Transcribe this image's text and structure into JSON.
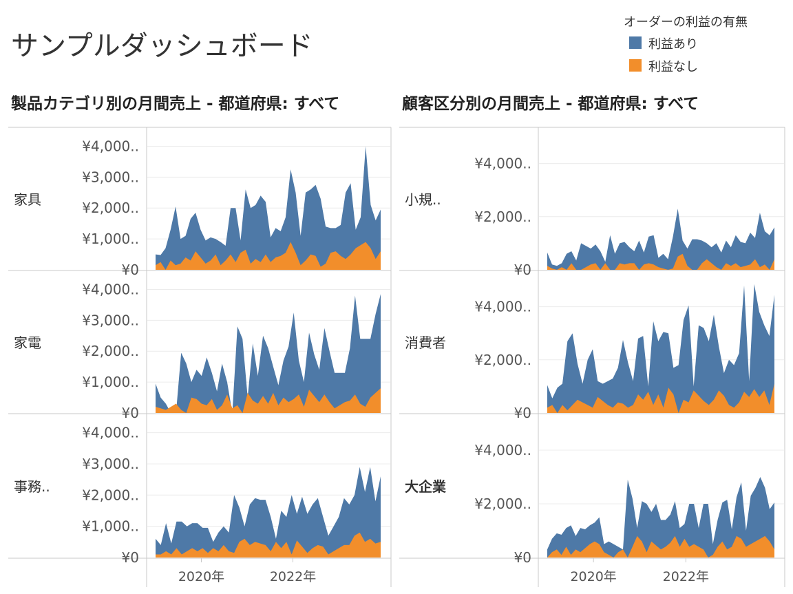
{
  "dashboard": {
    "title": "サンプルダッシュボード",
    "legend": {
      "title": "オーダーの利益の有無",
      "items": [
        {
          "label": "利益あり",
          "color": "#4e79a7"
        },
        {
          "label": "利益なし",
          "color": "#f28e2b"
        }
      ]
    },
    "x_axis_ticks": [
      "2020年",
      "2022年"
    ],
    "colors": {
      "profit": "#4e79a7",
      "loss": "#f28e2b",
      "grid": "#ececec",
      "divider": "#c8c8c8"
    }
  },
  "chart_data": [
    {
      "type": "area",
      "title": "製品カテゴリ別の月間売上 - 都道府県: すべて",
      "stacked": false,
      "x_range": [
        "2019-01",
        "2023-12"
      ],
      "panels": [
        {
          "label": "家具",
          "ylim": [
            0,
            4300
          ],
          "y_ticks": [
            {
              "v": 0,
              "label": "¥0"
            },
            {
              "v": 1000,
              "label": "¥1,000.."
            },
            {
              "v": 2000,
              "label": "¥2,000.."
            },
            {
              "v": 3000,
              "label": "¥3,000.."
            },
            {
              "v": 4000,
              "label": "¥4,000.."
            }
          ],
          "series": [
            {
              "name": "利益あり",
              "values": [
                500,
                480,
                700,
                1300,
                2050,
                1000,
                1100,
                1650,
                1850,
                1300,
                950,
                1050,
                1000,
                900,
                780,
                2000,
                2000,
                950,
                2600,
                2000,
                2100,
                2400,
                2200,
                1050,
                1350,
                1250,
                1700,
                3250,
                2500,
                1100,
                2500,
                2600,
                2750,
                2300,
                1400,
                1350,
                1350,
                1450,
                2500,
                2800,
                1300,
                1700,
                4000,
                2100,
                1600,
                1950
              ]
            },
            {
              "name": "利益なし",
              "values": [
                150,
                250,
                0,
                300,
                150,
                200,
                400,
                300,
                600,
                400,
                200,
                300,
                500,
                150,
                300,
                500,
                250,
                550,
                650,
                200,
                350,
                250,
                500,
                250,
                400,
                450,
                550,
                900,
                550,
                150,
                300,
                500,
                450,
                100,
                200,
                550,
                600,
                450,
                350,
                500,
                700,
                800,
                900,
                700,
                350,
                600
              ]
            }
          ]
        },
        {
          "label": "家電",
          "ylim": [
            0,
            4300
          ],
          "y_ticks": [
            {
              "v": 0,
              "label": "¥0"
            },
            {
              "v": 1000,
              "label": "¥1,000.."
            },
            {
              "v": 2000,
              "label": "¥2,000.."
            },
            {
              "v": 3000,
              "label": "¥3,000.."
            },
            {
              "v": 4000,
              "label": "¥4,000.."
            }
          ],
          "series": [
            {
              "name": "利益あり",
              "values": [
                950,
                500,
                300,
                1,
                1,
                1950,
                1600,
                1000,
                1400,
                1200,
                1800,
                1300,
                700,
                1600,
                1000,
                1,
                2800,
                2400,
                500,
                2250,
                1200,
                2500,
                2100,
                1500,
                900,
                1700,
                2150,
                3250,
                1700,
                1000,
                2600,
                1900,
                1400,
                2750,
                2000,
                1300,
                1300,
                1300,
                2100,
                3800,
                2400,
                2400,
                2400,
                3200,
                3850
              ]
            },
            {
              "name": "利益なし",
              "values": [
                200,
                150,
                100,
                200,
                300,
                100,
                0,
                500,
                450,
                300,
                250,
                450,
                100,
                250,
                600,
                150,
                250,
                0,
                650,
                400,
                300,
                550,
                300,
                650,
                250,
                500,
                350,
                450,
                600,
                200,
                750,
                550,
                350,
                600,
                350,
                150,
                250,
                350,
                400,
                600,
                300,
                200,
                500,
                650,
                800
              ]
            }
          ]
        },
        {
          "label": "事務..",
          "ylim": [
            0,
            4300
          ],
          "y_ticks": [
            {
              "v": 0,
              "label": "¥0"
            },
            {
              "v": 1000,
              "label": "¥1,000.."
            },
            {
              "v": 2000,
              "label": "¥2,000.."
            },
            {
              "v": 3000,
              "label": "¥3,000.."
            },
            {
              "v": 4000,
              "label": "¥4,000.."
            }
          ],
          "series": [
            {
              "name": "利益あり",
              "values": [
                600,
                400,
                1100,
                450,
                1150,
                1150,
                1000,
                1100,
                1100,
                950,
                950,
                500,
                800,
                1000,
                800,
                2000,
                1600,
                1000,
                1700,
                1900,
                1850,
                1850,
                1300,
                600,
                1500,
                1300,
                2000,
                1400,
                1950,
                1400,
                1700,
                1900,
                1300,
                700,
                1000,
                1300,
                1900,
                1700,
                2000,
                2900,
                2100,
                2900,
                1800,
                2600
              ]
            },
            {
              "name": "利益なし",
              "values": [
                100,
                100,
                200,
                100,
                300,
                100,
                200,
                300,
                200,
                300,
                150,
                300,
                200,
                400,
                200,
                150,
                500,
                600,
                400,
                500,
                450,
                400,
                200,
                500,
                300,
                500,
                100,
                550,
                350,
                150,
                300,
                400,
                350,
                100,
                200,
                300,
                400,
                400,
                700,
                800,
                500,
                600,
                450,
                500
              ]
            }
          ]
        }
      ]
    },
    {
      "type": "area",
      "title": "顧客区分別の月間売上 - 都道府県: すべて",
      "stacked": false,
      "x_range": [
        "2019-01",
        "2023-12"
      ],
      "panels": [
        {
          "label": "小規..",
          "ylim": [
            0,
            5000
          ],
          "y_ticks": [
            {
              "v": 0,
              "label": "¥0"
            },
            {
              "v": 2000,
              "label": "¥2,000.."
            },
            {
              "v": 4000,
              "label": "¥4,000.."
            }
          ],
          "series": [
            {
              "name": "利益あり",
              "values": [
                650,
                200,
                150,
                250,
                600,
                700,
                350,
                1000,
                900,
                800,
                950,
                700,
                300,
                1300,
                600,
                1000,
                1050,
                850,
                700,
                1100,
                650,
                1250,
                1300,
                450,
                600,
                400,
                1250,
                2300,
                1100,
                800,
                1150,
                1150,
                1100,
                1000,
                850,
                1000,
                650,
                1100,
                850,
                1300,
                1050,
                1000,
                1400,
                1200,
                2150,
                1450,
                1300,
                1600
              ]
            },
            {
              "name": "利益なし",
              "values": [
                150,
                50,
                0,
                100,
                0,
                250,
                0,
                0,
                100,
                200,
                250,
                0,
                250,
                0,
                0,
                250,
                200,
                250,
                250,
                0,
                200,
                250,
                200,
                100,
                50,
                0,
                50,
                500,
                600,
                150,
                0,
                0,
                250,
                400,
                250,
                100,
                0,
                250,
                150,
                250,
                100,
                150,
                200,
                400,
                100,
                200,
                0,
                400
              ]
            }
          ]
        },
        {
          "label": "消費者",
          "ylim": [
            0,
            5000
          ],
          "y_ticks": [
            {
              "v": 0,
              "label": "¥0"
            },
            {
              "v": 2000,
              "label": "¥2,000.."
            },
            {
              "v": 4000,
              "label": "¥4,000.."
            }
          ],
          "series": [
            {
              "name": "利益あり",
              "values": [
                1050,
                550,
                950,
                1100,
                2700,
                3000,
                1850,
                1100,
                2000,
                2400,
                1200,
                1100,
                1200,
                1300,
                1700,
                2750,
                1900,
                1200,
                2800,
                2900,
                1000,
                3450,
                2700,
                3050,
                3000,
                1700,
                1800,
                3500,
                4050,
                1000,
                3300,
                3200,
                2700,
                3700,
                2500,
                1500,
                2000,
                1800,
                2250,
                4800,
                1200,
                4850,
                3800,
                3300,
                2900,
                4450
              ]
            },
            {
              "name": "利益なし",
              "values": [
                200,
                300,
                0,
                300,
                100,
                300,
                500,
                400,
                300,
                200,
                600,
                450,
                300,
                200,
                400,
                350,
                200,
                300,
                700,
                500,
                800,
                300,
                700,
                200,
                950,
                700,
                0,
                500,
                400,
                850,
                650,
                450,
                300,
                500,
                850,
                650,
                300,
                200,
                400,
                800,
                600,
                900,
                600,
                850,
                300,
                1100
              ]
            }
          ]
        },
        {
          "label": "大企業",
          "ylim": [
            0,
            5000
          ],
          "y_ticks": [
            {
              "v": 0,
              "label": "¥0"
            },
            {
              "v": 2000,
              "label": "¥2,000.."
            },
            {
              "v": 4000,
              "label": "¥4,000.."
            }
          ],
          "series": [
            {
              "name": "利益あり",
              "values": [
                300,
                700,
                900,
                850,
                1100,
                1200,
                800,
                1100,
                1050,
                1200,
                1300,
                1500,
                500,
                600,
                500,
                400,
                300,
                2900,
                2200,
                1100,
                2100,
                2000,
                1700,
                2000,
                1400,
                1400,
                1600,
                2100,
                1100,
                1250,
                2000,
                2000,
                1100,
                2000,
                2000,
                500,
                1400,
                2050,
                2150,
                1050,
                2250,
                2800,
                1000,
                2300,
                2600,
                3000,
                2600,
                1800,
                2050
              ]
            },
            {
              "name": "利益なし",
              "values": [
                0,
                200,
                300,
                100,
                400,
                100,
                300,
                200,
                350,
                500,
                600,
                500,
                200,
                100,
                0,
                200,
                300,
                0,
                400,
                800,
                600,
                200,
                600,
                450,
                300,
                400,
                550,
                800,
                400,
                700,
                400,
                500,
                400,
                300,
                0,
                100,
                400,
                600,
                300,
                400,
                800,
                700,
                400,
                500,
                600,
                700,
                800,
                600,
                300
              ]
            }
          ]
        }
      ]
    }
  ]
}
